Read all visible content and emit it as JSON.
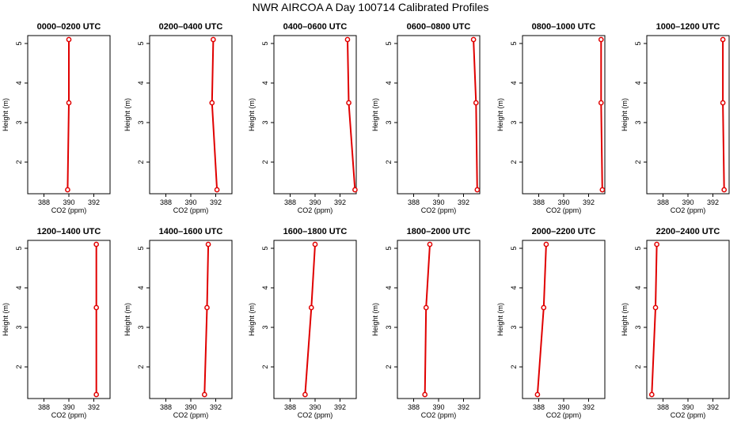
{
  "title": "NWR AIRCOA A  Day 100714  Calibrated Profiles",
  "chart_data": {
    "type": "line",
    "title": "NWR AIRCOA A  Day 100714  Calibrated Profiles",
    "xlabel": "CO2 (ppm)",
    "ylabel": "Height (m)",
    "xlim": [
      386.7,
      393.3
    ],
    "ylim": [
      1.2,
      5.2
    ],
    "xticks": [
      388,
      390,
      392
    ],
    "yticks": [
      2,
      3,
      4,
      5
    ],
    "grid": false,
    "line_color": "#e00000",
    "heights": [
      1.3,
      3.5,
      5.1
    ],
    "panels": [
      {
        "name": "0000–0200 UTC",
        "co2": [
          389.9,
          390.0,
          390.0
        ]
      },
      {
        "name": "0200–0400 UTC",
        "co2": [
          392.1,
          391.7,
          391.8
        ]
      },
      {
        "name": "0400–0600 UTC",
        "co2": [
          393.2,
          392.7,
          392.6
        ]
      },
      {
        "name": "0600–0800 UTC",
        "co2": [
          393.1,
          393.0,
          392.8
        ]
      },
      {
        "name": "0800–1000 UTC",
        "co2": [
          393.1,
          393.0,
          393.0
        ]
      },
      {
        "name": "1000–1200 UTC",
        "co2": [
          392.9,
          392.8,
          392.8
        ]
      },
      {
        "name": "1200–1400 UTC",
        "co2": [
          392.2,
          392.2,
          392.2
        ]
      },
      {
        "name": "1400–1600 UTC",
        "co2": [
          391.1,
          391.3,
          391.4
        ]
      },
      {
        "name": "1600–1800 UTC",
        "co2": [
          389.2,
          389.7,
          390.0
        ]
      },
      {
        "name": "1800–2000 UTC",
        "co2": [
          388.9,
          389.0,
          389.3
        ]
      },
      {
        "name": "2000–2200 UTC",
        "co2": [
          387.9,
          388.4,
          388.6
        ]
      },
      {
        "name": "2200–2400 UTC",
        "co2": [
          387.1,
          387.4,
          387.5
        ]
      }
    ]
  }
}
